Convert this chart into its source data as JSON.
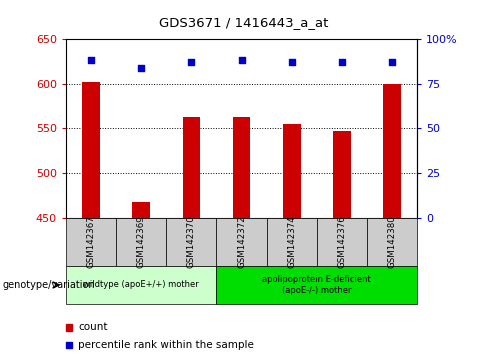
{
  "title": "GDS3671 / 1416443_a_at",
  "samples": [
    "GSM142367",
    "GSM142369",
    "GSM142370",
    "GSM142372",
    "GSM142374",
    "GSM142376",
    "GSM142380"
  ],
  "counts": [
    602,
    468,
    563,
    563,
    555,
    547,
    600
  ],
  "percentile_ranks": [
    88,
    84,
    87,
    88,
    87,
    87,
    87
  ],
  "ymin": 450,
  "ymax": 650,
  "yticks": [
    450,
    500,
    550,
    600,
    650
  ],
  "y2min": 0,
  "y2max": 100,
  "y2ticks": [
    0,
    25,
    50,
    75,
    100
  ],
  "bar_color": "#cc0000",
  "dot_color": "#0000cc",
  "bar_width": 0.35,
  "groups": [
    {
      "label": "wildtype (apoE+/+) mother",
      "samples": [
        "GSM142367",
        "GSM142369",
        "GSM142370"
      ],
      "color": "#ccffcc"
    },
    {
      "label": "apolipoprotein E-deficient\n(apoE-/-) mother",
      "samples": [
        "GSM142372",
        "GSM142374",
        "GSM142376",
        "GSM142380"
      ],
      "color": "#00dd00"
    }
  ],
  "xlabel": "genotype/variation",
  "legend_count_label": "count",
  "legend_pct_label": "percentile rank within the sample",
  "background_color": "#ffffff",
  "plot_bg_color": "#ffffff",
  "grid_color": "#000000",
  "tick_label_color_left": "#cc0000",
  "tick_label_color_right": "#0000cc",
  "x_tick_bg": "#cccccc"
}
